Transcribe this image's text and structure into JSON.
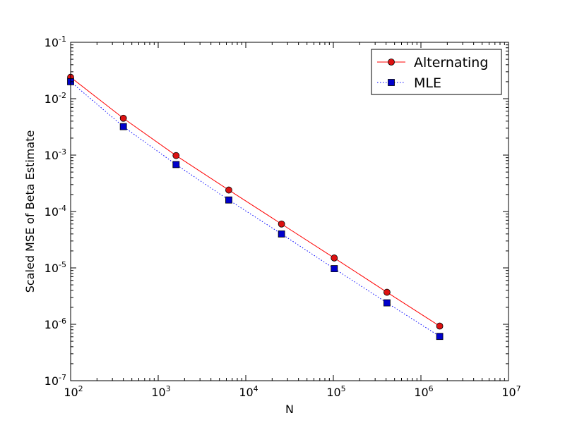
{
  "chart_data": {
    "type": "line",
    "xlabel": "N",
    "ylabel": "Scaled MSE of Beta Estimate",
    "xscale": "log",
    "yscale": "log",
    "xlim": [
      100,
      10000000
    ],
    "ylim": [
      1e-07,
      0.1
    ],
    "grid": false,
    "legend_position": "top-right",
    "x_ticks": [
      {
        "value": 100,
        "base": "10",
        "exp": "2"
      },
      {
        "value": 1000,
        "base": "10",
        "exp": "3"
      },
      {
        "value": 10000,
        "base": "10",
        "exp": "4"
      },
      {
        "value": 100000,
        "base": "10",
        "exp": "5"
      },
      {
        "value": 1000000,
        "base": "10",
        "exp": "6"
      },
      {
        "value": 10000000,
        "base": "10",
        "exp": "7"
      }
    ],
    "y_ticks": [
      {
        "value": 0.1,
        "base": "10",
        "exp": "-1"
      },
      {
        "value": 0.01,
        "base": "10",
        "exp": "-2"
      },
      {
        "value": 0.001,
        "base": "10",
        "exp": "-3"
      },
      {
        "value": 0.0001,
        "base": "10",
        "exp": "-4"
      },
      {
        "value": 1e-05,
        "base": "10",
        "exp": "-5"
      },
      {
        "value": 1e-06,
        "base": "10",
        "exp": "-6"
      },
      {
        "value": 1e-07,
        "base": "10",
        "exp": "-7"
      }
    ],
    "x": [
      100,
      400,
      1600,
      6400,
      25600,
      102400,
      409600,
      1638400
    ],
    "series": [
      {
        "name": "Alternating",
        "color": "#ff0000",
        "marker_color": "#dd1111",
        "line_style": "solid",
        "marker": "circle",
        "values": [
          0.024,
          0.0045,
          0.00098,
          0.00024,
          6e-05,
          1.5e-05,
          3.7e-06,
          9.3e-07
        ]
      },
      {
        "name": "MLE",
        "color": "#0000ff",
        "marker_color": "#0000cc",
        "line_style": "dotted",
        "marker": "square",
        "values": [
          0.02,
          0.0032,
          0.00068,
          0.00016,
          4e-05,
          9.7e-06,
          2.4e-06,
          6.1e-07
        ]
      }
    ]
  }
}
